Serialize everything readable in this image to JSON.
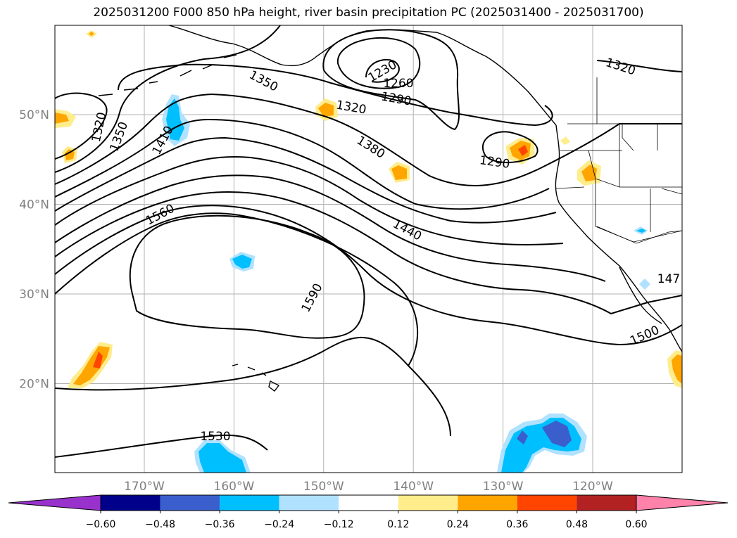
{
  "title": "2025031200 F000 850 hPa height, river basin precipitation PC (2025031400 - 2025031700)",
  "map": {
    "lat_labels": [
      {
        "lat": 50,
        "text": "50°N"
      },
      {
        "lat": 40,
        "text": "40°N"
      },
      {
        "lat": 30,
        "text": "30°N"
      },
      {
        "lat": 20,
        "text": "20°N"
      }
    ],
    "lon_labels": [
      {
        "lon": -170,
        "text": "170°W"
      },
      {
        "lon": -160,
        "text": "160°W"
      },
      {
        "lon": -150,
        "text": "150°W"
      },
      {
        "lon": -140,
        "text": "140°W"
      },
      {
        "lon": -130,
        "text": "130°W"
      },
      {
        "lon": -120,
        "text": "120°W"
      }
    ],
    "contour_labels": [
      "1230",
      "1260",
      "1290",
      "1320",
      "1350",
      "1380",
      "1410",
      "1440",
      "1500",
      "1530",
      "1560",
      "1590",
      "1320",
      "1350",
      "1320",
      "1290",
      "1320",
      "147"
    ]
  },
  "colorbar": {
    "colors": [
      "#9932CC",
      "#00008B",
      "#3A5FCD",
      "#00BFFF",
      "#B0E2FF",
      "#FFFFFF",
      "#FFEC8B",
      "#FFA500",
      "#FF4500",
      "#B22222",
      "#FF82AB"
    ],
    "ticks": [
      "−0.60",
      "−0.48",
      "−0.36",
      "−0.24",
      "−0.12",
      "0.12",
      "0.24",
      "0.36",
      "0.48",
      "0.60"
    ]
  }
}
